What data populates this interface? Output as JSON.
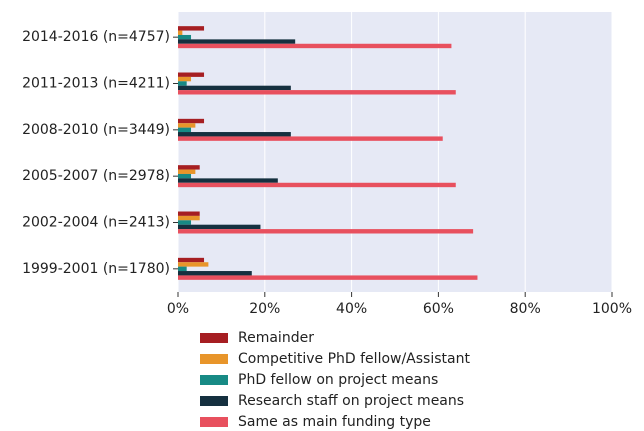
{
  "chart_data": {
    "type": "hbar",
    "categories": [
      "2014-2016 (n=4757)",
      "2011-2013 (n=4211)",
      "2008-2010 (n=3449)",
      "2005-2007 (n=2978)",
      "2002-2004 (n=2413)",
      "1999-2001 (n=1780)"
    ],
    "series": [
      {
        "name": "Remainder",
        "color": "#a61e22",
        "values": [
          6,
          6,
          6,
          5,
          5,
          6
        ]
      },
      {
        "name": "Competitive PhD fellow/Assistant",
        "color": "#e8952a",
        "values": [
          1,
          3,
          4,
          4,
          5,
          7
        ]
      },
      {
        "name": "PhD fellow on project means",
        "color": "#178a85",
        "values": [
          3,
          2,
          3,
          3,
          3,
          2
        ]
      },
      {
        "name": "Research staff on project means",
        "color": "#15303f",
        "values": [
          27,
          26,
          26,
          23,
          19,
          17
        ]
      },
      {
        "name": "Same as main funding type",
        "color": "#e8505e",
        "values": [
          63,
          64,
          61,
          64,
          68,
          69
        ]
      }
    ],
    "xlim": [
      0,
      100
    ],
    "xticks": [
      {
        "value": 0,
        "label": "0%"
      },
      {
        "value": 20,
        "label": "20%"
      },
      {
        "value": 40,
        "label": "40%"
      },
      {
        "value": 60,
        "label": "60%"
      },
      {
        "value": 80,
        "label": "80%"
      },
      {
        "value": 100,
        "label": "100%"
      }
    ],
    "grid": true
  }
}
